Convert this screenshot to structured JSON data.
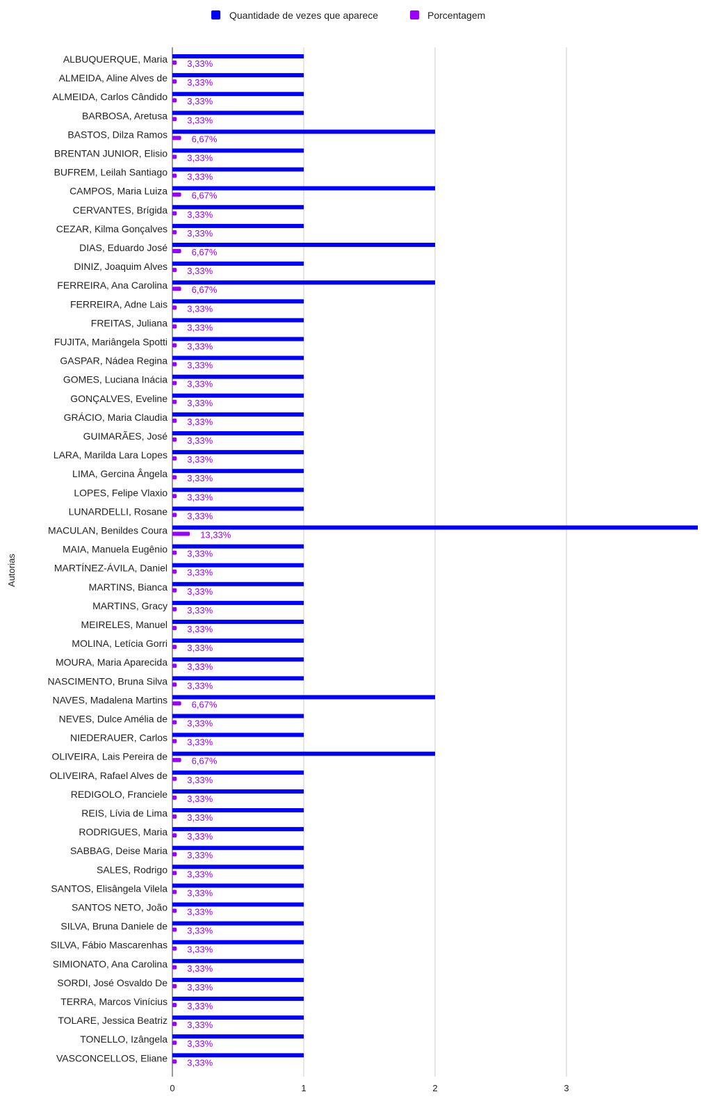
{
  "chart_data": {
    "type": "bar",
    "orientation": "horizontal",
    "ylabel": "Autorias",
    "xlim": [
      0,
      4
    ],
    "x_ticks": [
      "0",
      "1",
      "2",
      "3"
    ],
    "grid": true,
    "legend_placement": "top",
    "colors": {
      "quantidade": "#0000ff",
      "porcentagem": "#9900ff"
    },
    "series": [
      {
        "name": "Quantidade de vezes que aparece"
      },
      {
        "name": "Porcentagem"
      }
    ],
    "categories": [
      "ALBUQUERQUE, Maria",
      "ALMEIDA, Aline Alves de",
      "ALMEIDA, Carlos Cândido",
      "BARBOSA, Aretusa",
      "BASTOS, Dilza Ramos",
      "BRENTAN JUNIOR, Elisio",
      "BUFREM, Leilah Santiago",
      "CAMPOS, Maria Luiza",
      "CERVANTES, Brígida",
      "CEZAR, Kilma Gonçalves",
      "DIAS, Eduardo José",
      "DINIZ, Joaquim Alves",
      "FERREIRA, Ana Carolina",
      "FERREIRA, Adne Lais",
      "FREITAS, Juliana",
      "FUJITA, Mariângela Spotti",
      "GASPAR, Nádea Regina",
      "GOMES, Luciana Inácia",
      "GONÇALVES, Eveline",
      "GRÁCIO, Maria Claudia",
      "GUIMARÃES, José",
      "LARA, Marilda Lara Lopes",
      "LIMA, Gercina Ângela",
      "LOPES, Felipe Vlaxio",
      "LUNARDELLI, Rosane",
      "MACULAN, Benildes Coura",
      "MAIA, Manuela Eugênio",
      "MARTÍNEZ-ÁVILA, Daniel",
      "MARTINS, Bianca",
      "MARTINS, Gracy",
      "MEIRELES, Manuel",
      "MOLINA, Letícia Gorri",
      "MOURA, Maria Aparecida",
      "NASCIMENTO, Bruna Silva",
      "NAVES, Madalena Martins",
      "NEVES, Dulce Amélia de",
      "NIEDERAUER, Carlos",
      "OLIVEIRA, Lais Pereira de",
      "OLIVEIRA, Rafael Alves de",
      "REDIGOLO, Franciele",
      "REIS, Lívia de Lima",
      "RODRIGUES, Maria",
      "SABBAG, Deise Maria",
      "SALES, Rodrigo",
      "SANTOS, Elisângela Vilela",
      "SANTOS NETO, João",
      "SILVA, Bruna Daniele de",
      "SILVA, Fábio Mascarenhas",
      "SIMIONATO, Ana Carolina",
      "SORDI, José Osvaldo De",
      "TERRA, Marcos Vinícius",
      "TOLARE, Jessica Beatriz",
      "TONELLO, Izângela",
      "VASCONCELLOS, Eliane"
    ],
    "quantidade": [
      1,
      1,
      1,
      1,
      2,
      1,
      1,
      2,
      1,
      1,
      2,
      1,
      2,
      1,
      1,
      1,
      1,
      1,
      1,
      1,
      1,
      1,
      1,
      1,
      1,
      4,
      1,
      1,
      1,
      1,
      1,
      1,
      1,
      1,
      2,
      1,
      1,
      2,
      1,
      1,
      1,
      1,
      1,
      1,
      1,
      1,
      1,
      1,
      1,
      1,
      1,
      1,
      1,
      1
    ],
    "porcentagem": [
      0.0333,
      0.0333,
      0.0333,
      0.0333,
      0.0667,
      0.0333,
      0.0333,
      0.0667,
      0.0333,
      0.0333,
      0.0667,
      0.0333,
      0.0667,
      0.0333,
      0.0333,
      0.0333,
      0.0333,
      0.0333,
      0.0333,
      0.0333,
      0.0333,
      0.0333,
      0.0333,
      0.0333,
      0.0333,
      0.1333,
      0.0333,
      0.0333,
      0.0333,
      0.0333,
      0.0333,
      0.0333,
      0.0333,
      0.0333,
      0.0667,
      0.0333,
      0.0333,
      0.0667,
      0.0333,
      0.0333,
      0.0333,
      0.0333,
      0.0333,
      0.0333,
      0.0333,
      0.0333,
      0.0333,
      0.0333,
      0.0333,
      0.0333,
      0.0333,
      0.0333,
      0.0333,
      0.0333
    ],
    "porcentagem_labels": [
      "3,33%",
      "3,33%",
      "3,33%",
      "3,33%",
      "6,67%",
      "3,33%",
      "3,33%",
      "6,67%",
      "3,33%",
      "3,33%",
      "6,67%",
      "3,33%",
      "6,67%",
      "3,33%",
      "3,33%",
      "3,33%",
      "3,33%",
      "3,33%",
      "3,33%",
      "3,33%",
      "3,33%",
      "3,33%",
      "3,33%",
      "3,33%",
      "3,33%",
      "13,33%",
      "3,33%",
      "3,33%",
      "3,33%",
      "3,33%",
      "3,33%",
      "3,33%",
      "3,33%",
      "3,33%",
      "6,67%",
      "3,33%",
      "3,33%",
      "6,67%",
      "3,33%",
      "3,33%",
      "3,33%",
      "3,33%",
      "3,33%",
      "3,33%",
      "3,33%",
      "3,33%",
      "3,33%",
      "3,33%",
      "3,33%",
      "3,33%",
      "3,33%",
      "3,33%",
      "3,33%",
      "3,33%"
    ]
  }
}
